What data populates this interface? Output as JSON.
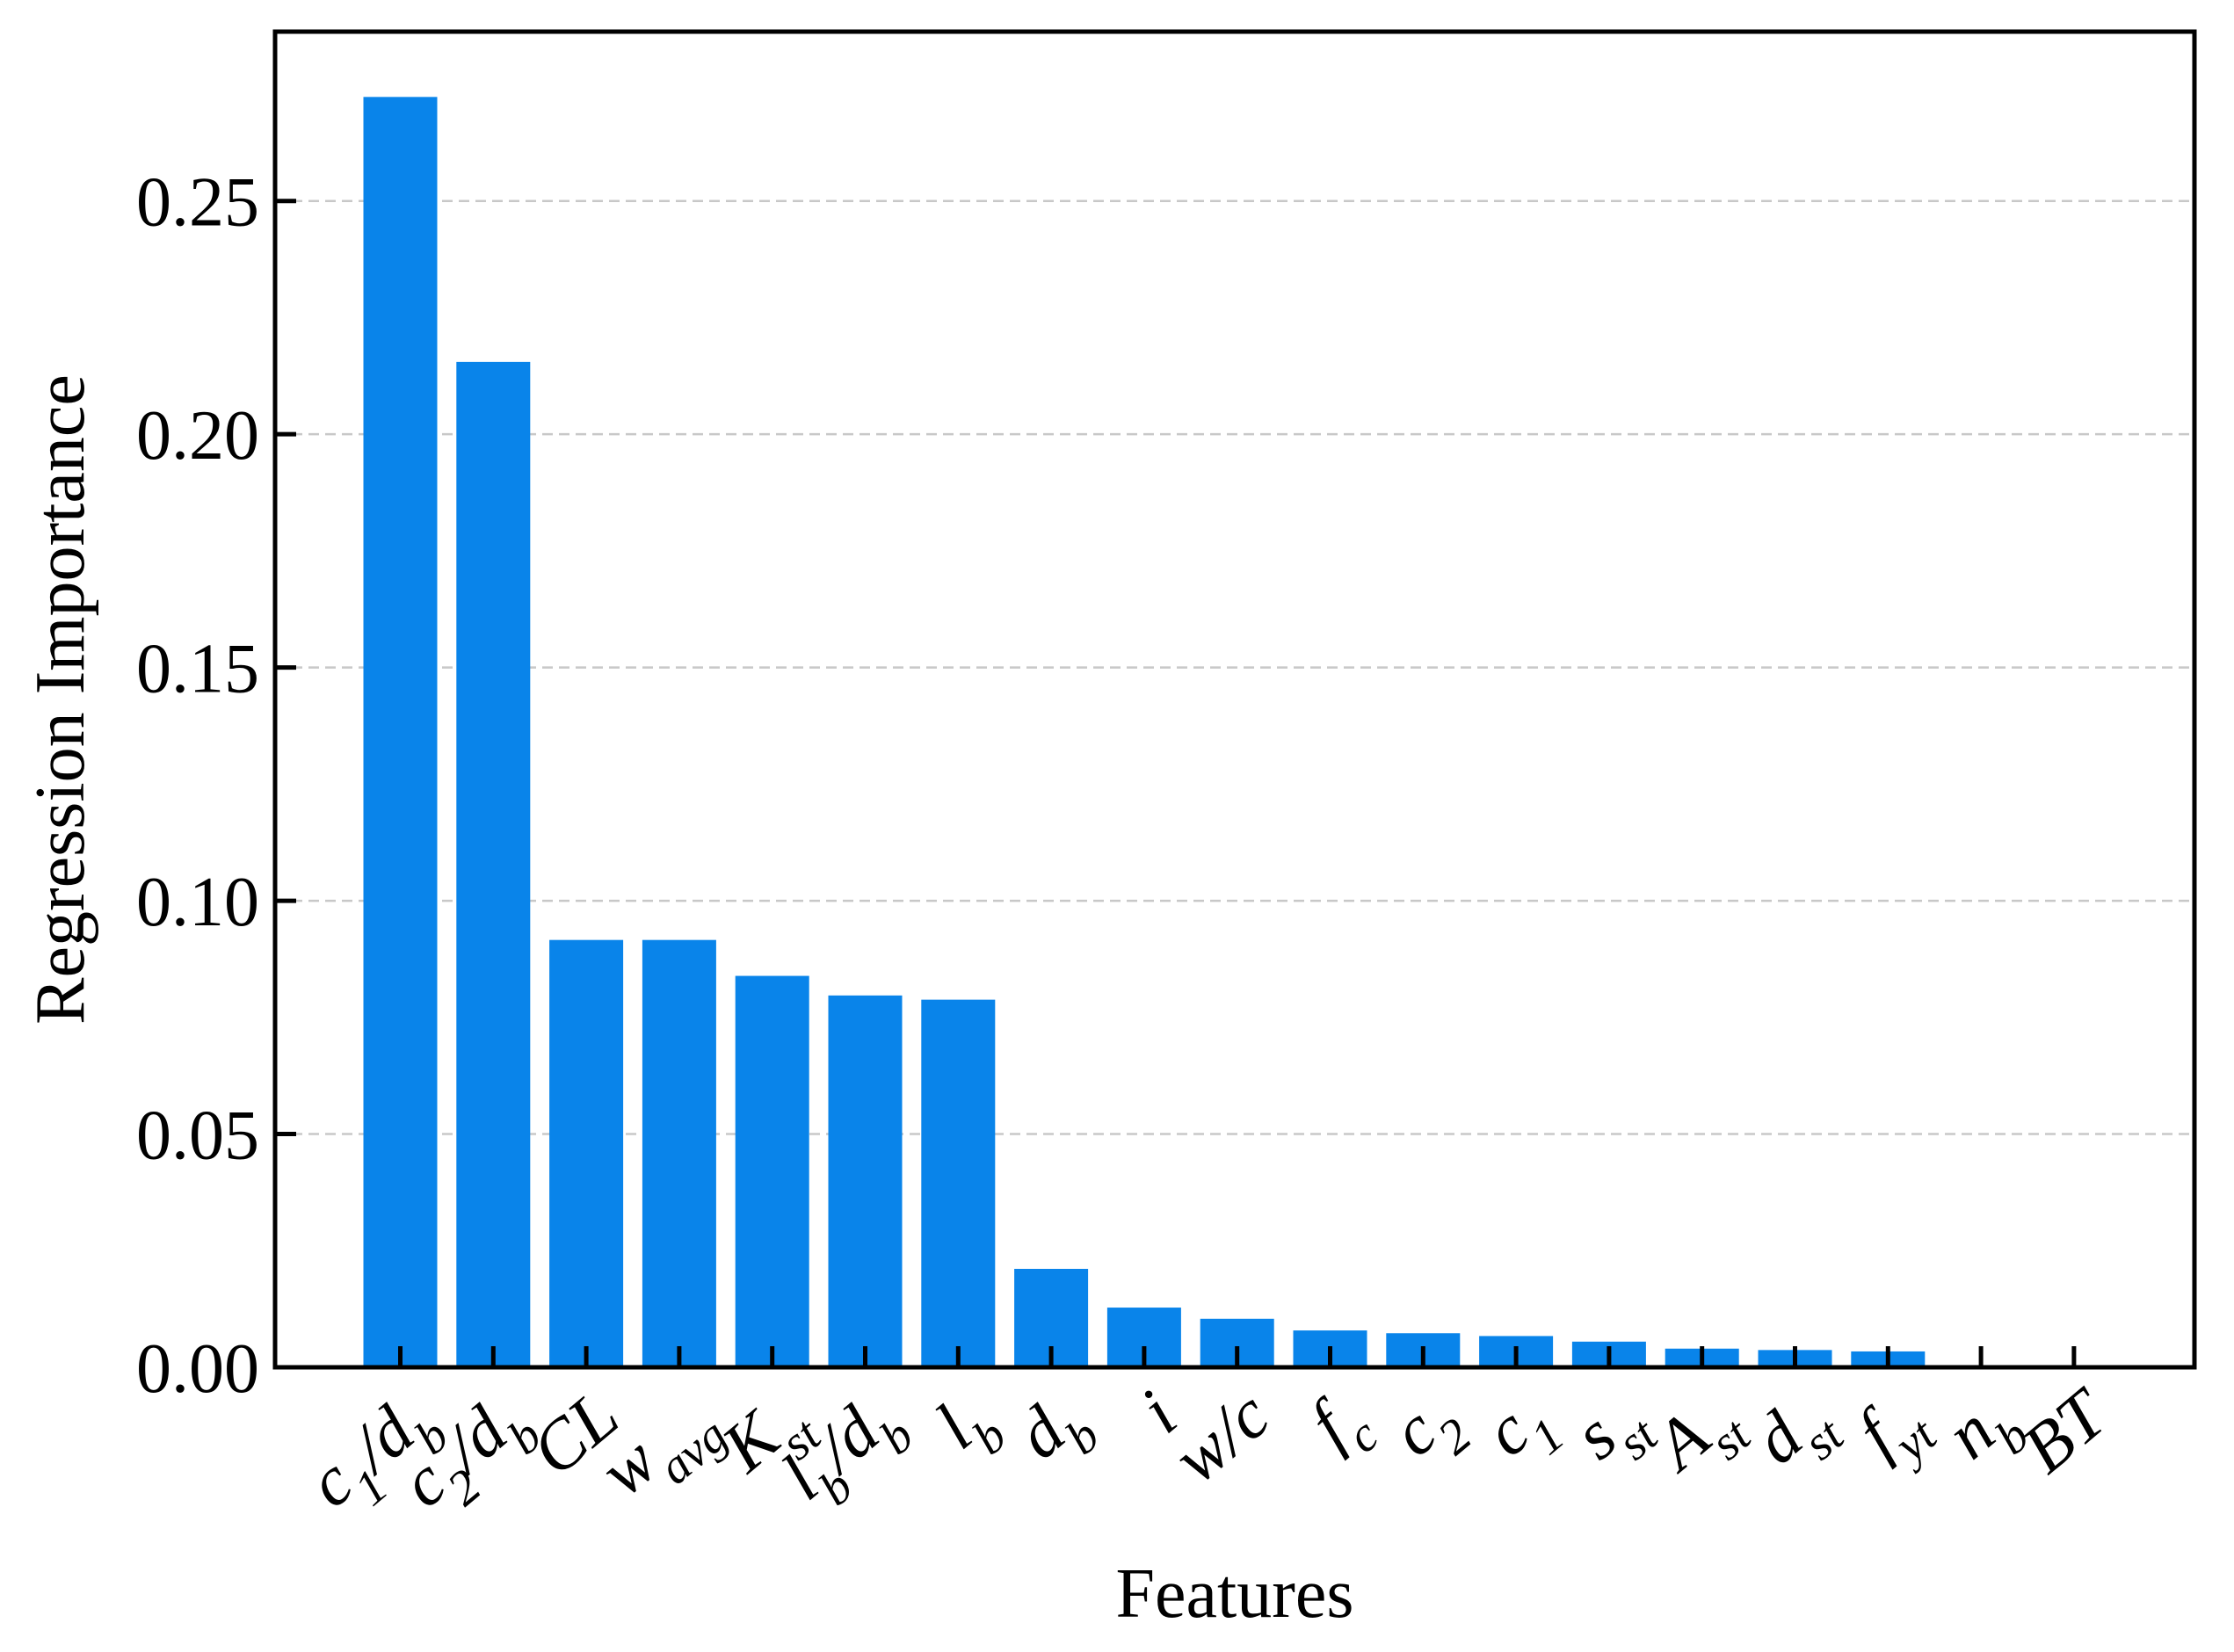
{
  "chart_data": {
    "type": "bar",
    "xlabel": "Features",
    "ylabel": "Regression Importance",
    "categories": [
      "c_1/d_b",
      "c_2/d_b",
      "CL",
      "w_{avg}",
      "K_{st}",
      "l_b/d_b",
      "l_b",
      "d_b",
      "i",
      "w/c",
      "f_c",
      "c_2",
      "c_1",
      "s_{st}",
      "A_{st}",
      "d_{st}",
      "f_{yt}",
      "n_b",
      "BT"
    ],
    "values": [
      0.2723,
      0.2155,
      0.0916,
      0.0916,
      0.0839,
      0.0797,
      0.0788,
      0.0211,
      0.0128,
      0.0104,
      0.0079,
      0.0073,
      0.0067,
      0.0055,
      0.004,
      0.0037,
      0.0034,
      0,
      0
    ],
    "color": "#0984ea",
    "ylim": [
      0,
      0.2863
    ],
    "yticks": [
      {
        "value": 0,
        "label": "0.00"
      },
      0.05,
      {
        "value": 0.1,
        "label": "0.10"
      },
      0.15,
      {
        "value": 0.2,
        "label": "0.20"
      },
      0.25
    ],
    "grid": true
  }
}
